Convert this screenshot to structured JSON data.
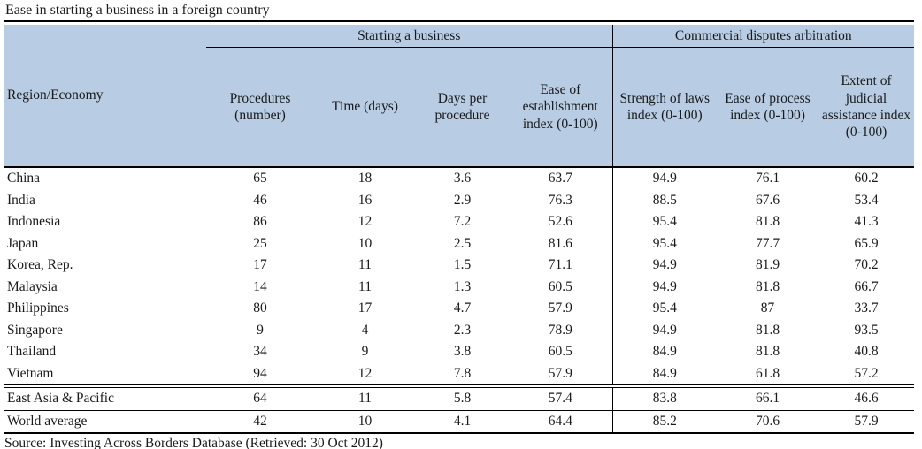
{
  "title": "Ease in starting a business in a foreign country",
  "chart_data": {
    "type": "table",
    "title": "Ease in starting a business in a foreign country",
    "column_groups": [
      {
        "label": "Starting a business",
        "columns_span": [
          1,
          4
        ]
      },
      {
        "label": "Commercial disputes arbitration",
        "columns_span": [
          5,
          7
        ]
      }
    ],
    "columns": [
      "Region/Economy",
      "Procedures (number)",
      "Time (days)",
      "Days per procedure",
      "Ease of establishment index (0-100)",
      "Strength of laws index (0-100)",
      "Ease of process index (0-100)",
      "Extent of judicial assistance index (0-100)"
    ],
    "rows": [
      [
        "China",
        65,
        18,
        3.6,
        63.7,
        94.9,
        76.1,
        60.2
      ],
      [
        "India",
        46,
        16,
        2.9,
        76.3,
        88.5,
        67.6,
        53.4
      ],
      [
        "Indonesia",
        86,
        12,
        7.2,
        52.6,
        95.4,
        81.8,
        41.3
      ],
      [
        "Japan",
        25,
        10,
        2.5,
        81.6,
        95.4,
        77.7,
        65.9
      ],
      [
        "Korea, Rep.",
        17,
        11,
        1.5,
        71.1,
        94.9,
        81.9,
        70.2
      ],
      [
        "Malaysia",
        14,
        11,
        1.3,
        60.5,
        94.9,
        81.8,
        66.7
      ],
      [
        "Philippines",
        80,
        17,
        4.7,
        57.9,
        95.4,
        87,
        33.7
      ],
      [
        "Singapore",
        9,
        4,
        2.3,
        78.9,
        94.9,
        81.8,
        93.5
      ],
      [
        "Thailand",
        34,
        9,
        3.8,
        60.5,
        84.9,
        81.8,
        40.8
      ],
      [
        "Vietnam",
        94,
        12,
        7.8,
        57.9,
        84.9,
        61.8,
        57.2
      ]
    ],
    "summary_rows": [
      [
        "East Asia & Pacific",
        64,
        11,
        5.8,
        57.4,
        83.8,
        66.1,
        46.6
      ],
      [
        "World average",
        42,
        10,
        4.1,
        64.4,
        85.2,
        70.6,
        57.9
      ]
    ]
  },
  "source": "Source: Investing Across Borders Database (Retrieved: 30 Oct 2012)",
  "colors": {
    "header_bg": "#b8cce4",
    "border": "#000000",
    "text": "#1a1a1a"
  }
}
